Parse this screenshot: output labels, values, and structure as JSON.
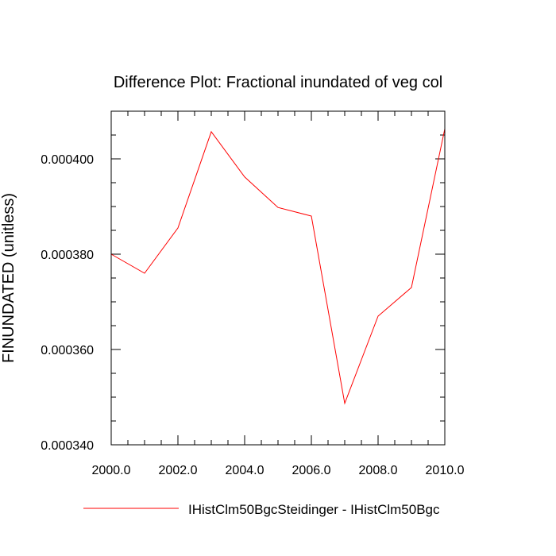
{
  "chart_data": {
    "type": "line",
    "title": "Difference Plot: Fractional inundated of veg col",
    "xlabel": "",
    "ylabel": "FINUNDATED  (unitless)",
    "xlim": [
      2000,
      2010
    ],
    "ylim": [
      0.00034,
      0.00041
    ],
    "xticks": [
      2000,
      2002,
      2004,
      2006,
      2008,
      2010
    ],
    "xtick_labels": [
      "2000.0",
      "2002.0",
      "2004.0",
      "2006.0",
      "2008.0",
      "2010.0"
    ],
    "yticks": [
      0.00034,
      0.00036,
      0.00038,
      0.0004
    ],
    "ytick_labels": [
      "0.000340",
      "0.000360",
      "0.000380",
      "0.000400"
    ],
    "grid": false,
    "legend_position": "bottom",
    "series": [
      {
        "name": "IHistClm50BgcSteidinger - IHistClm50Bgc",
        "color": "#ff0000",
        "x": [
          2000,
          2001,
          2002,
          2003,
          2004,
          2005,
          2006,
          2007,
          2008,
          2009,
          2010
        ],
        "y": [
          0.00038,
          0.000376,
          0.0003855,
          0.0004057,
          0.0003962,
          0.0003898,
          0.000388,
          0.0003487,
          0.000367,
          0.000373,
          0.0004063
        ]
      }
    ]
  }
}
